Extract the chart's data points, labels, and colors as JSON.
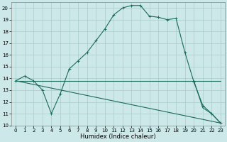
{
  "xlabel": "Humidex (Indice chaleur)",
  "bg_color": "#cce8e8",
  "line_color": "#1a6b5a",
  "grid_color": "#aacccc",
  "xlim": [
    -0.5,
    23.5
  ],
  "ylim": [
    10,
    20.5
  ],
  "yticks": [
    10,
    11,
    12,
    13,
    14,
    15,
    16,
    17,
    18,
    19,
    20
  ],
  "xticks": [
    0,
    1,
    2,
    3,
    4,
    5,
    6,
    7,
    8,
    9,
    10,
    11,
    12,
    13,
    14,
    15,
    16,
    17,
    18,
    19,
    20,
    21,
    22,
    23
  ],
  "line1_x": [
    0,
    1,
    2,
    3,
    4,
    5,
    6,
    7,
    8,
    9,
    10,
    11,
    12,
    13,
    14,
    15,
    16,
    17,
    18,
    19,
    20,
    21,
    22,
    23
  ],
  "line1_y": [
    13.8,
    14.2,
    13.8,
    13.0,
    11.0,
    12.7,
    14.8,
    15.5,
    16.2,
    17.2,
    18.2,
    19.4,
    20.0,
    20.2,
    20.2,
    19.3,
    19.2,
    19.0,
    19.1,
    16.2,
    13.7,
    11.7,
    11.0,
    10.2
  ],
  "line2_x": [
    0,
    1,
    2,
    3,
    4,
    5,
    6,
    7,
    8,
    9,
    10,
    11,
    12,
    13,
    14,
    15,
    16,
    17,
    18,
    19,
    20,
    21,
    22,
    23
  ],
  "line2_y": [
    13.8,
    13.8,
    13.8,
    13.8,
    13.8,
    13.8,
    13.8,
    13.8,
    13.8,
    13.8,
    13.8,
    13.8,
    13.8,
    13.8,
    13.8,
    13.8,
    13.8,
    13.8,
    13.8,
    13.8,
    13.8,
    13.8,
    13.8,
    13.8
  ],
  "line3_x": [
    0,
    23
  ],
  "line3_y": [
    13.8,
    10.2
  ],
  "line4_x": [
    20,
    21,
    22,
    23
  ],
  "line4_y": [
    13.8,
    11.5,
    11.0,
    10.2
  ]
}
